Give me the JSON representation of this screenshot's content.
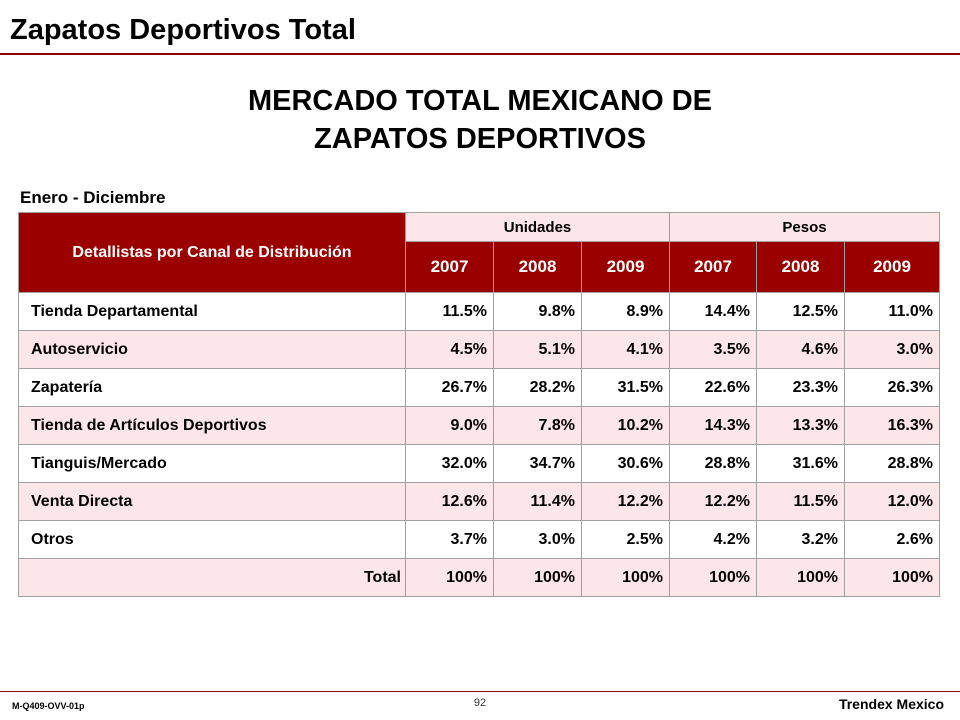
{
  "header": {
    "title": "Zapatos Deportivos Total"
  },
  "main": {
    "title_line1": "MERCADO TOTAL MEXICANO DE",
    "title_line2": "ZAPATOS DEPORTIVOS",
    "period": "Enero - Diciembre"
  },
  "table": {
    "row_header": "Detallistas por Canal de Distribución",
    "groups": [
      "Unidades",
      "Pesos"
    ],
    "years": [
      "2007",
      "2008",
      "2009",
      "2007",
      "2008",
      "2009"
    ],
    "rows": [
      {
        "label": "Tienda Departamental",
        "values": [
          "11.5%",
          "9.8%",
          "8.9%",
          "14.4%",
          "12.5%",
          "11.0%"
        ]
      },
      {
        "label": "Autoservicio",
        "values": [
          "4.5%",
          "5.1%",
          "4.1%",
          "3.5%",
          "4.6%",
          "3.0%"
        ]
      },
      {
        "label": "Zapatería",
        "values": [
          "26.7%",
          "28.2%",
          "31.5%",
          "22.6%",
          "23.3%",
          "26.3%"
        ]
      },
      {
        "label": "Tienda de Artículos Deportivos",
        "values": [
          "9.0%",
          "7.8%",
          "10.2%",
          "14.3%",
          "13.3%",
          "16.3%"
        ]
      },
      {
        "label": "Tianguis/Mercado",
        "values": [
          "32.0%",
          "34.7%",
          "30.6%",
          "28.8%",
          "31.6%",
          "28.8%"
        ]
      },
      {
        "label": "Venta Directa",
        "values": [
          "12.6%",
          "11.4%",
          "12.2%",
          "12.2%",
          "11.5%",
          "12.0%"
        ]
      },
      {
        "label": "Otros",
        "values": [
          "3.7%",
          "3.0%",
          "2.5%",
          "4.2%",
          "3.2%",
          "2.6%"
        ]
      }
    ],
    "total": {
      "label": "Total",
      "values": [
        "100%",
        "100%",
        "100%",
        "100%",
        "100%",
        "100%"
      ]
    }
  },
  "footer": {
    "code": "M-Q409-OVV-01p",
    "page": "92",
    "brand": "Trendex Mexico"
  },
  "colors": {
    "header_bg": "#9b0000",
    "row_alt_bg": "#fde6ea",
    "rule": "#8b0000"
  }
}
